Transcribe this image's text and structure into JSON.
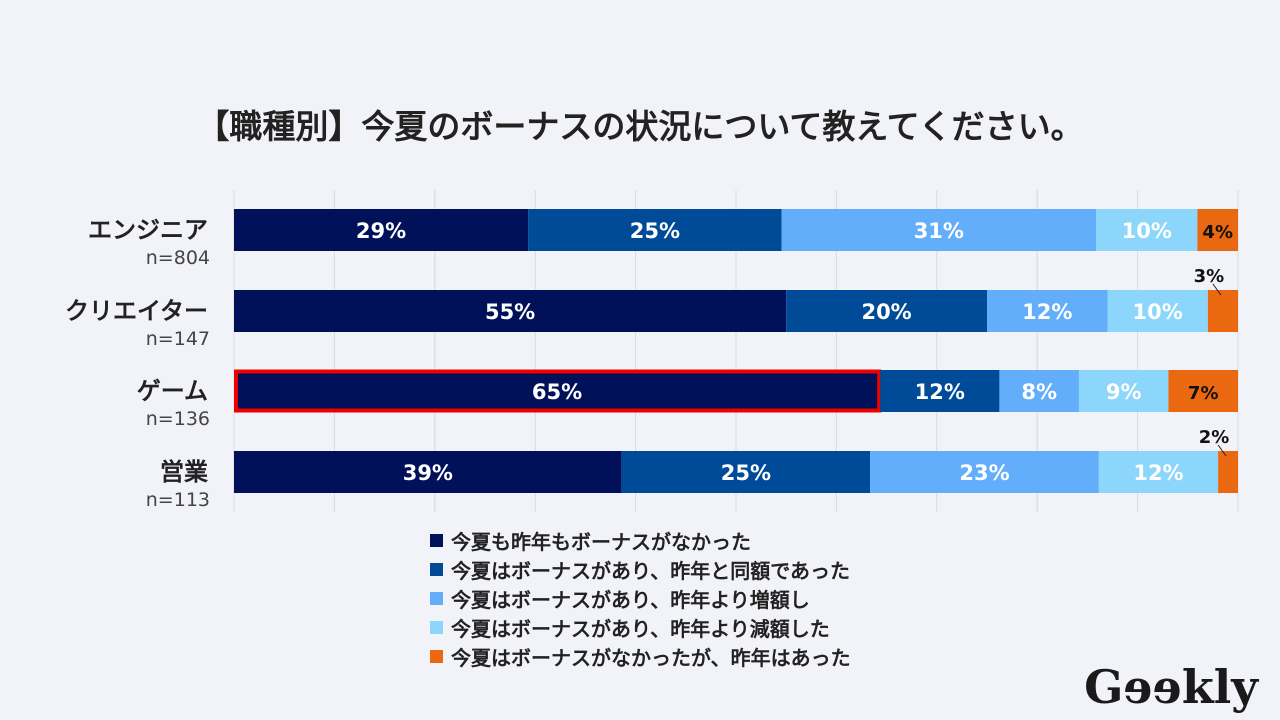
{
  "chart_data": {
    "type": "bar",
    "orientation": "horizontal",
    "stacked": true,
    "title": "【職種別】今夏のボーナスの状況について教えてください。",
    "categories": [
      "エンジニア",
      "クリエイター",
      "ゲーム",
      "営業"
    ],
    "sample_sizes": [
      "n=804",
      "n=147",
      "n=136",
      "n=113"
    ],
    "series": [
      {
        "name": "今夏も昨年もボーナスがなかった",
        "color": "#001159",
        "values": [
          29,
          55,
          65,
          39
        ]
      },
      {
        "name": "今夏はボーナスがあり、昨年と同額であった",
        "color": "#004b97",
        "values": [
          25,
          20,
          12,
          25
        ]
      },
      {
        "name": "今夏はボーナスがあり、昨年より増額し",
        "color": "#62aefa",
        "values": [
          31,
          12,
          8,
          23
        ]
      },
      {
        "name": "今夏はボーナスがあり、昨年より減額した",
        "color": "#8cd5fb",
        "values": [
          10,
          10,
          9,
          12
        ]
      },
      {
        "name": "今夏はボーナスがなかったが、昨年はあった",
        "color": "#ea680f",
        "values": [
          4,
          3,
          7,
          2
        ]
      }
    ],
    "xlim": [
      0,
      100
    ],
    "grid": true,
    "legend_position": "bottom",
    "highlight": {
      "category": "ゲーム",
      "series": 0,
      "color": "#ee0000"
    }
  },
  "logo": "Geekly"
}
